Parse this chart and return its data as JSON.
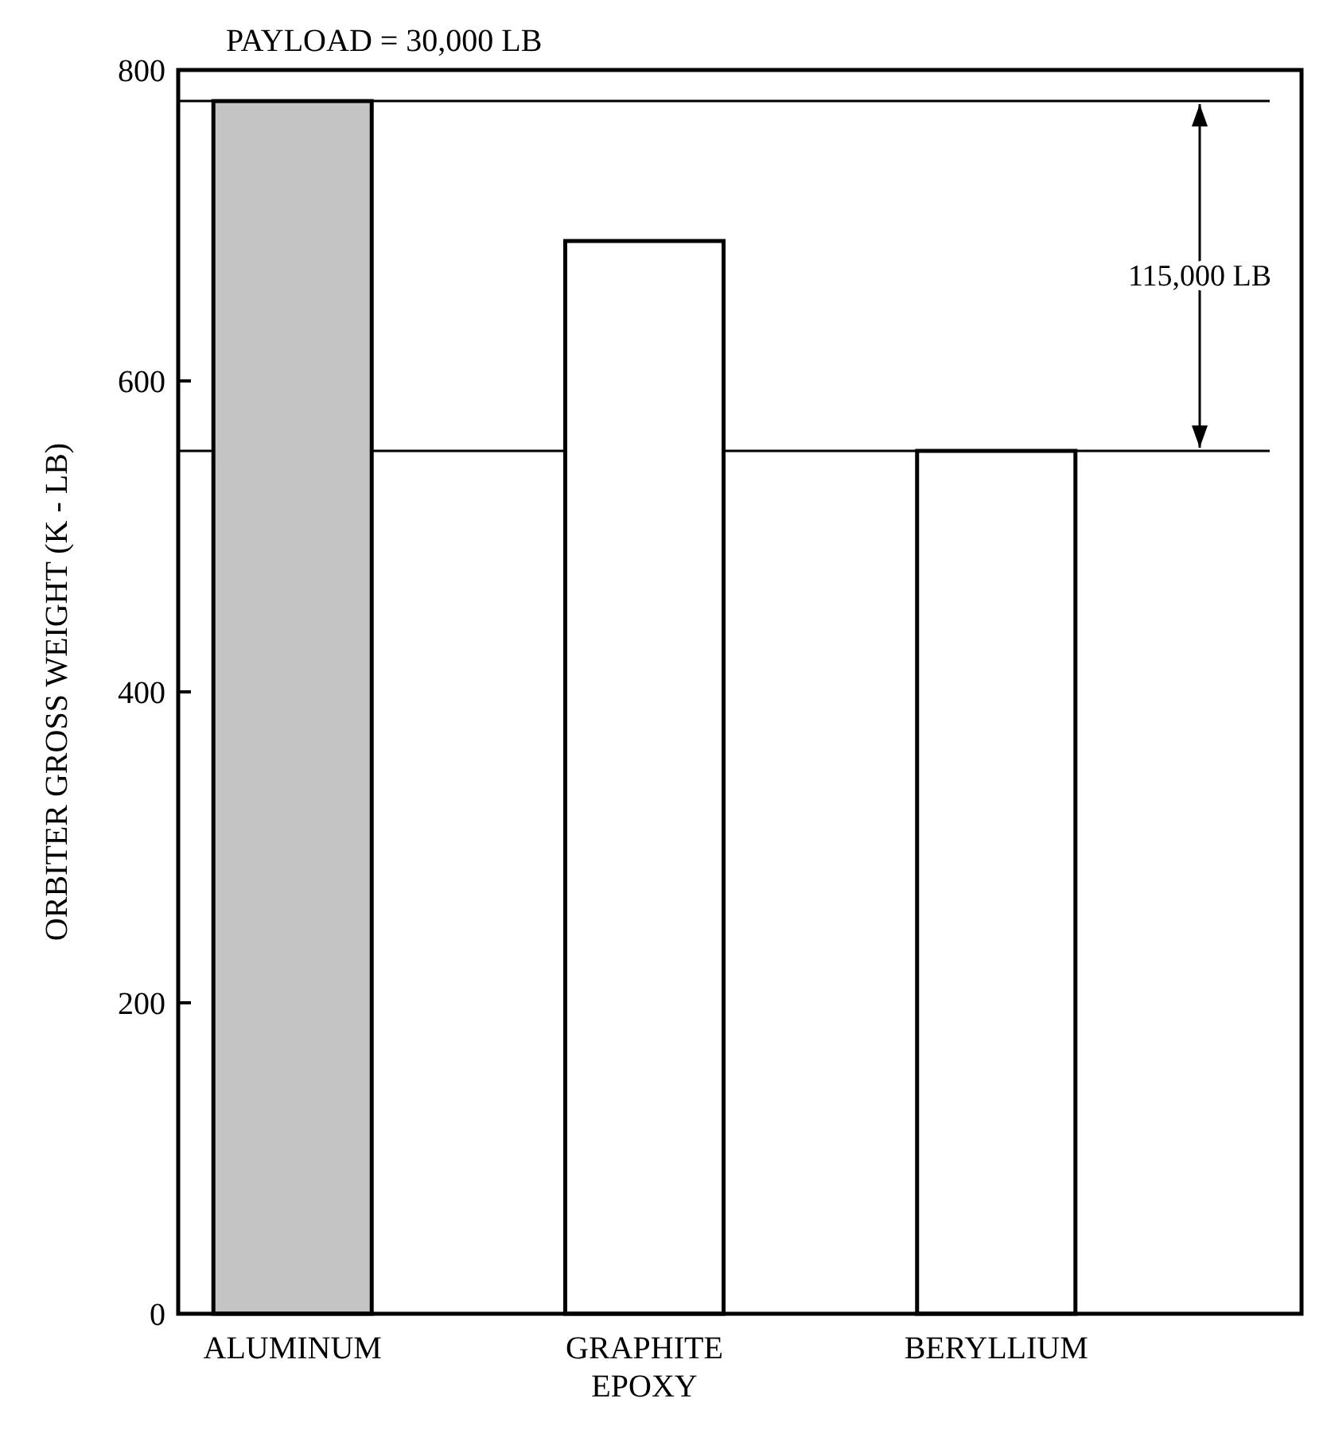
{
  "chart_data": {
    "type": "bar",
    "title": "PAYLOAD = 30,000 LB",
    "ylabel": "ORBITER GROSS WEIGHT (K - LB)",
    "categories": [
      "ALUMINUM",
      "GRAPHITE EPOXY",
      "BERYLLIUM"
    ],
    "values": [
      780,
      690,
      555
    ],
    "colors": [
      "#c4c4c4",
      "#ffffff",
      "#ffffff"
    ],
    "ylim": [
      0,
      800
    ],
    "yticks": [
      0,
      200,
      400,
      600,
      800
    ],
    "grid": false,
    "ref_lines": [
      {
        "axis": "y",
        "value": 780
      },
      {
        "axis": "y",
        "value": 555
      }
    ],
    "annotations": [
      "115,000 LB"
    ]
  }
}
